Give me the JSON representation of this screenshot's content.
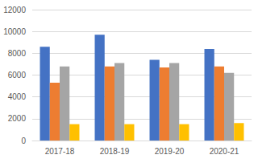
{
  "chart_data": {
    "type": "bar",
    "categories": [
      "2017-18",
      "2018-19",
      "2019-20",
      "2020-21"
    ],
    "series": [
      {
        "color": "#4472c4",
        "values": [
          8600,
          9700,
          7400,
          8400
        ]
      },
      {
        "color": "#ed7d31",
        "values": [
          5300,
          6800,
          6700,
          6800
        ]
      },
      {
        "color": "#a5a5a5",
        "values": [
          6800,
          7100,
          7100,
          6200
        ]
      },
      {
        "color": "#ffc000",
        "values": [
          1500,
          1500,
          1500,
          1600
        ]
      }
    ],
    "ylim": [
      0,
      12000
    ],
    "yticks": [
      0,
      2000,
      4000,
      6000,
      8000,
      10000,
      12000
    ],
    "grid": true
  }
}
